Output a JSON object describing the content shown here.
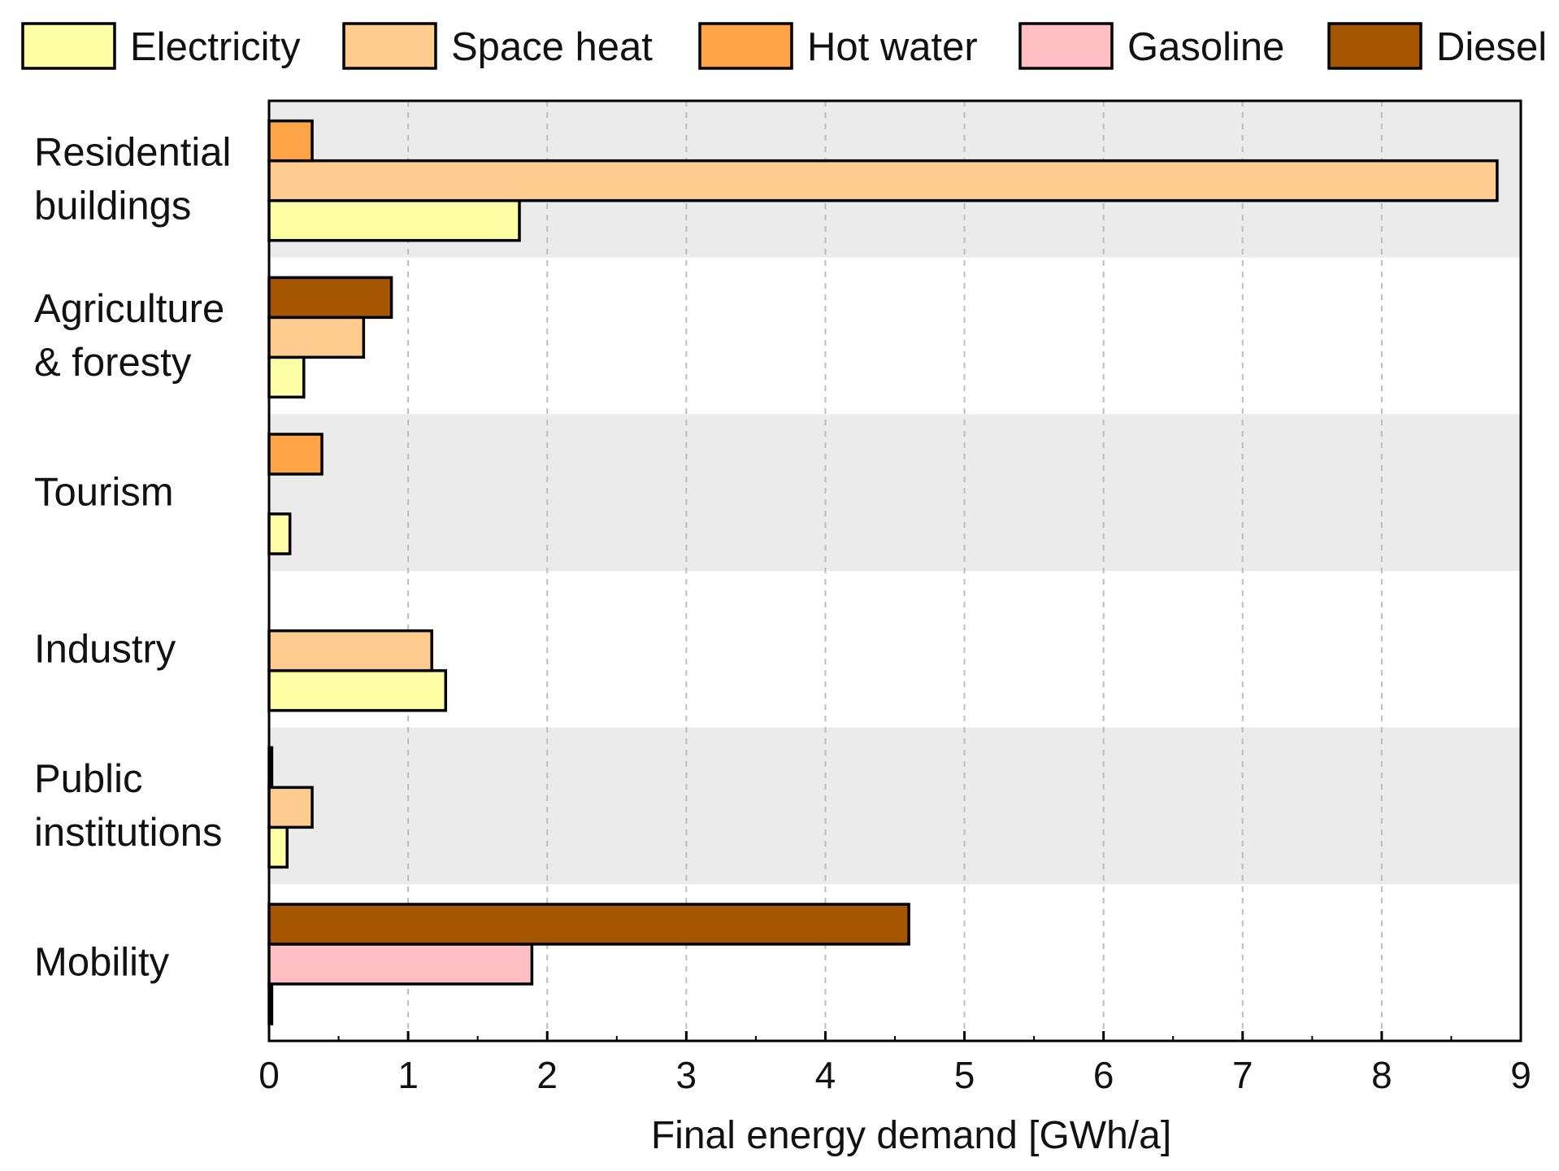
{
  "chart_data": {
    "type": "bar",
    "orientation": "horizontal",
    "title": "",
    "xlabel": "Final energy demand [GWh/a]",
    "ylabel": "",
    "xlim": [
      0,
      9
    ],
    "xticks": [
      0,
      1,
      2,
      3,
      4,
      5,
      6,
      7,
      8,
      9
    ],
    "grid": "vertical dashed",
    "legend_position": "top",
    "categories": [
      [
        "Residential",
        "buildings"
      ],
      [
        "Agriculture",
        "& foresty"
      ],
      [
        "Tourism"
      ],
      [
        "Industry"
      ],
      [
        "Public",
        "institutions"
      ],
      [
        "Mobility"
      ]
    ],
    "series": [
      {
        "name": "Electricity",
        "color": "#FFFFA6",
        "values": [
          1.8,
          0.25,
          0.15,
          1.27,
          0.13,
          0.02
        ]
      },
      {
        "name": "Space heat",
        "color": "#FFCC8F",
        "values": [
          8.83,
          0.68,
          0,
          1.17,
          0.31,
          0
        ]
      },
      {
        "name": "Hot water",
        "color": "#FFA347",
        "values": [
          0.31,
          0,
          0.38,
          0,
          0,
          0
        ]
      },
      {
        "name": "Gasoline",
        "color": "#FFBFC2",
        "values": [
          0,
          0,
          0,
          0,
          0,
          1.89
        ]
      },
      {
        "name": "Diesel",
        "color": "#A65500",
        "values": [
          0,
          0.88,
          0,
          0,
          0.02,
          4.6
        ]
      }
    ],
    "bar_slots": [
      {
        "category": 0,
        "series": [
          0,
          1,
          2
        ]
      },
      {
        "category": 1,
        "series": [
          0,
          1,
          4
        ]
      },
      {
        "category": 2,
        "series": [
          0,
          1,
          2
        ]
      },
      {
        "category": 3,
        "series": [
          0,
          1,
          2
        ]
      },
      {
        "category": 4,
        "series": [
          0,
          1,
          4
        ]
      },
      {
        "category": 5,
        "series": [
          0,
          3,
          4
        ]
      }
    ]
  }
}
